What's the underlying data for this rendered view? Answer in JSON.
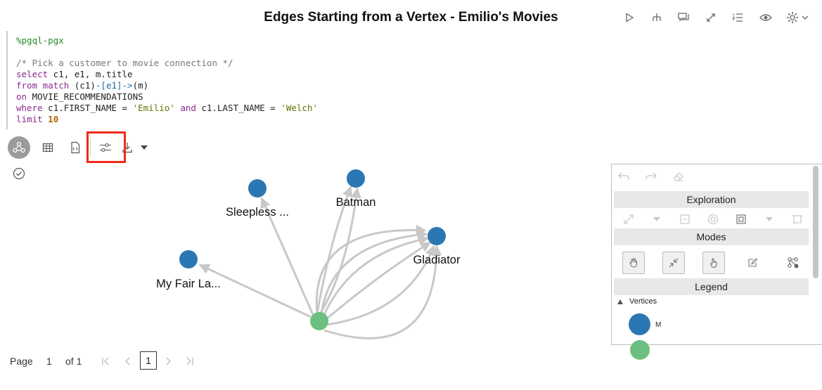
{
  "paragraph": {
    "title": "Edges Starting from a Vertex - Emilio's Movies"
  },
  "toolbar": {
    "icons": [
      "run-icon",
      "hierarchy-icon",
      "comment-icon",
      "expand-icon",
      "list-numbered-icon",
      "visibility-icon",
      "settings-icon"
    ]
  },
  "code": {
    "line1": "%pgql-pgx",
    "line2": "/* Pick a customer to movie connection */",
    "line3_kw": "select",
    "line3_rest": " c1, e1, m.title",
    "line4_kw": "from match",
    "line4_rest": " (c1)",
    "line4_e": "-[e1]->",
    "line4_m": "(m)",
    "line5_kw": "on",
    "line5_rest": " MOVIE_RECOMMENDATIONS",
    "line6_kw": "where",
    "line6_a": " c1.FIRST_NAME = ",
    "line6_s1": "'Emilio'",
    "line6_and": " and",
    "line6_b": " c1.LAST_NAME = ",
    "line6_s2": "'Welch'",
    "line7_kw": "limit",
    "line7_num": "10"
  },
  "graph": {
    "vertices": [
      {
        "label": "Sleepless ...",
        "color": "#2a77b3"
      },
      {
        "label": "Batman",
        "color": "#2a77b3"
      },
      {
        "label": "Gladiator",
        "color": "#2a77b3"
      },
      {
        "label": "My Fair La...",
        "color": "#2a77b3"
      },
      {
        "label": "",
        "color": "#6cbf7f"
      }
    ],
    "edge_color": "#c8c8c8"
  },
  "panel": {
    "exploration_label": "Exploration",
    "modes_label": "Modes",
    "legend_label": "Legend",
    "vertices_label": "Vertices",
    "legend_item_label": "M",
    "legend_color": "#2a77b3",
    "legend_color2": "#6cbf7f"
  },
  "pager": {
    "page_label": "Page",
    "current_page": "1",
    "of_label": "of 1",
    "page_button": "1"
  },
  "colors": {
    "highlight": "#ef2a17",
    "accent": "#2a77b3",
    "source": "#6cbf7f"
  }
}
